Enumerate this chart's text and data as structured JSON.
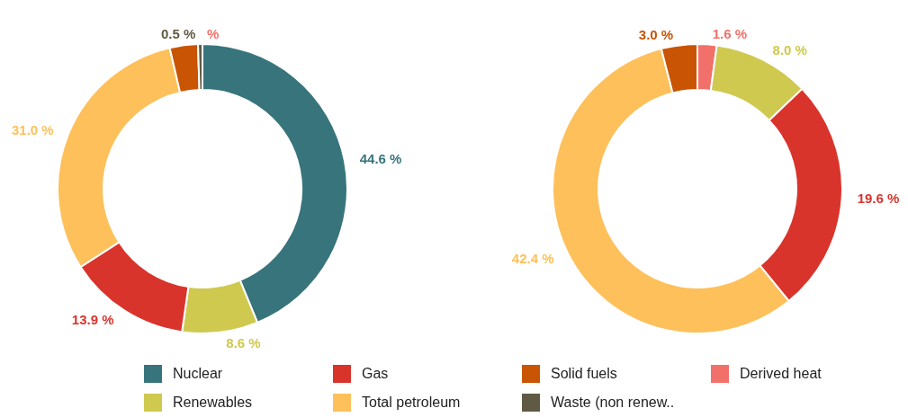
{
  "chart_data": [
    {
      "type": "donut",
      "categories": [
        "Nuclear",
        "Renewables",
        "Gas",
        "Total petroleum",
        "Solid fuels",
        "Waste (non renew..",
        "Derived heat"
      ],
      "values": [
        44.6,
        8.6,
        13.9,
        31.0,
        3.2,
        0.5,
        0
      ],
      "value_labels": [
        "44.6 %",
        "8.6 %",
        "13.9 %",
        "31.0 %",
        null,
        "0.5 %",
        "%"
      ],
      "colors": [
        "#38747b",
        "#cfc94f",
        "#d8342c",
        "#fec05a",
        "#c95404",
        "#605a44",
        "#f2706a"
      ],
      "legend": "bottom"
    },
    {
      "type": "donut",
      "categories": [
        null,
        null,
        null,
        null,
        null
      ],
      "values": [
        1.6,
        8.0,
        19.6,
        42.4,
        3.0
      ],
      "value_labels": [
        "1.6 %",
        "8.0 %",
        "19.6 %",
        "42.4 %",
        "3.0 %"
      ],
      "colors": [
        "#f2706a",
        "#cfc94f",
        "#d8342c",
        "#fec05a",
        "#c95404"
      ]
    }
  ]
}
